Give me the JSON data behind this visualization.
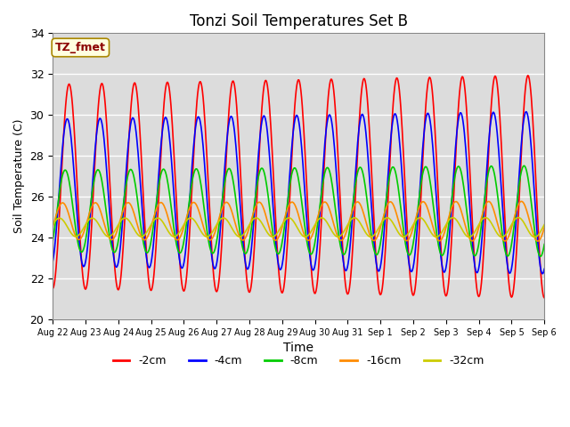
{
  "title": "Tonzi Soil Temperatures Set B",
  "xlabel": "Time",
  "ylabel": "Soil Temperature (C)",
  "ylim": [
    20,
    34
  ],
  "yticks": [
    20,
    22,
    24,
    26,
    28,
    30,
    32,
    34
  ],
  "x_labels": [
    "Aug 22",
    "Aug 23",
    "Aug 24",
    "Aug 25",
    "Aug 26",
    "Aug 27",
    "Aug 28",
    "Aug 29",
    "Aug 30",
    "Aug 31",
    "Sep 1",
    "Sep 2",
    "Sep 3",
    "Sep 4",
    "Sep 5",
    "Sep 6"
  ],
  "annotation_text": "TZ_fmet",
  "annotation_color": "#8B0000",
  "annotation_bg": "#FFFFE0",
  "series_colors": [
    "#FF0000",
    "#0000FF",
    "#00CC00",
    "#FF8C00",
    "#CCCC00"
  ],
  "series_labels": [
    "-2cm",
    "-4cm",
    "-8cm",
    "-16cm",
    "-32cm"
  ],
  "bg_color": "#DCDCDC",
  "n_days": 15,
  "n_pts_per_day": 48,
  "means": [
    26.5,
    26.2,
    25.3,
    24.8,
    24.5
  ],
  "amps": [
    5.0,
    3.6,
    2.0,
    0.9,
    0.45
  ],
  "phases": [
    0.0,
    0.35,
    0.75,
    1.25,
    1.85
  ],
  "amp_growth": [
    0.03,
    0.025,
    0.015,
    0.005,
    0.002
  ],
  "mean_drift": [
    0.0,
    0.0,
    0.0,
    0.0,
    0.0
  ]
}
